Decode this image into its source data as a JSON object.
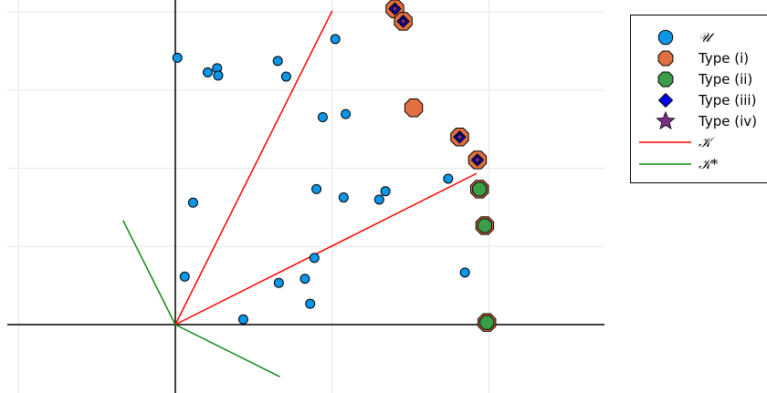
{
  "chart_data": {
    "type": "scatter",
    "title": "",
    "xlabel": "",
    "ylabel": "",
    "xlim": [
      -1.6,
      4.1
    ],
    "ylim": [
      -0.62,
      3.1
    ],
    "grid": true,
    "legend_position": "top-right",
    "x_grid_values": [
      -1.5,
      0,
      1.5,
      3
    ],
    "y_grid_values": [
      0,
      0.75,
      1.5,
      2.25,
      3
    ],
    "series": [
      {
        "name": "𝒰",
        "marker": "circle",
        "color": "#0B96E8",
        "points": [
          [
            0.02,
            2.56
          ],
          [
            0.31,
            2.42
          ],
          [
            0.4,
            2.46
          ],
          [
            0.41,
            2.39
          ],
          [
            0.98,
            2.53
          ],
          [
            1.06,
            2.38
          ],
          [
            1.53,
            2.74
          ],
          [
            1.41,
            1.99
          ],
          [
            1.63,
            2.02
          ],
          [
            1.35,
            1.3
          ],
          [
            1.61,
            1.22
          ],
          [
            1.95,
            1.2
          ],
          [
            2.01,
            1.28
          ],
          [
            2.61,
            1.4
          ],
          [
            0.17,
            1.17
          ],
          [
            1.33,
            0.64
          ],
          [
            1.24,
            0.44
          ],
          [
            0.99,
            0.4
          ],
          [
            1.29,
            0.2
          ],
          [
            0.09,
            0.46
          ],
          [
            0.65,
            0.05
          ],
          [
            2.77,
            0.5
          ]
        ]
      },
      {
        "name": "Type (i)",
        "marker": "octagon",
        "color": "#E0703F",
        "points": [
          [
            2.1,
            3.03
          ],
          [
            2.18,
            2.91
          ],
          [
            2.28,
            2.08
          ],
          [
            2.72,
            1.8
          ],
          [
            2.89,
            1.58
          ],
          [
            2.91,
            1.3
          ],
          [
            2.96,
            0.95
          ],
          [
            2.98,
            0.02
          ]
        ]
      },
      {
        "name": "Type (ii)",
        "marker": "octagon",
        "color": "#3A9E48",
        "points": [
          [
            2.91,
            1.3
          ],
          [
            2.96,
            0.95
          ],
          [
            2.98,
            0.02
          ]
        ]
      },
      {
        "name": "Type (iii)",
        "marker": "diamond",
        "color": "#0000EE",
        "points": [
          [
            2.1,
            3.03
          ],
          [
            2.18,
            2.91
          ],
          [
            2.72,
            1.8
          ],
          [
            2.89,
            1.58
          ]
        ]
      },
      {
        "name": "Type (iv)",
        "marker": "star",
        "color": "#7B2E86",
        "points": [
          [
            2.1,
            3.03
          ],
          [
            2.18,
            2.91
          ],
          [
            2.72,
            1.8
          ],
          [
            2.89,
            1.58
          ]
        ]
      },
      {
        "name": "𝒦",
        "type": "line",
        "color": "#FF0000",
        "segments": [
          [
            [
              0,
              0
            ],
            [
              1.5,
              3.01
            ]
          ],
          [
            [
              0,
              0
            ],
            [
              2.88,
              1.45
            ]
          ]
        ]
      },
      {
        "name": "𝒦*",
        "type": "line",
        "color": "#118811",
        "segments": [
          [
            [
              0,
              0
            ],
            [
              -0.5,
              1.0
            ]
          ],
          [
            [
              0,
              0
            ],
            [
              1.0,
              -0.5
            ]
          ]
        ]
      }
    ]
  }
}
